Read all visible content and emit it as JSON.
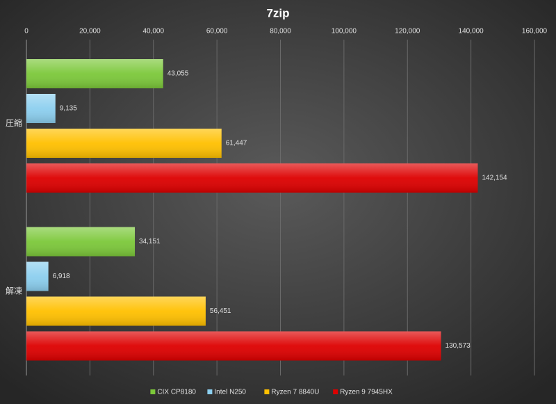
{
  "chart_data": {
    "type": "hbar",
    "title": "7zip",
    "categories": [
      "圧縮",
      "解凍"
    ],
    "series": [
      {
        "name": "CIX CP8180",
        "color": "#7cc83a",
        "values": [
          43055,
          34151
        ],
        "value_labels": [
          "43,055",
          "34,151"
        ]
      },
      {
        "name": "Intel N250",
        "color": "#8ccfef",
        "values": [
          9135,
          6918
        ],
        "value_labels": [
          "9,135",
          "6,918"
        ]
      },
      {
        "name": "Ryzen 7 8840U",
        "color": "#ffc000",
        "values": [
          61447,
          56451
        ],
        "value_labels": [
          "61,447",
          "56,451"
        ]
      },
      {
        "name": "Ryzen 9 7945HX",
        "color": "#dd0000",
        "values": [
          142154,
          130573
        ],
        "value_labels": [
          "142,154",
          "130,573"
        ]
      }
    ],
    "xlim": [
      0,
      160000
    ],
    "xticks": [
      0,
      {
        "value": 20000,
        "label": "20,000"
      },
      {
        "value": 40000,
        "label": "40,000"
      },
      {
        "value": 60000,
        "label": "60,000"
      },
      {
        "value": 80000,
        "label": "80,000"
      },
      {
        "value": 100000,
        "label": "100,000"
      },
      {
        "value": 120000,
        "label": "120,000"
      },
      {
        "value": 140000,
        "label": "140,000"
      },
      {
        "value": 160000,
        "label": "160,000"
      }
    ],
    "grid": true,
    "legend": "bottom"
  }
}
